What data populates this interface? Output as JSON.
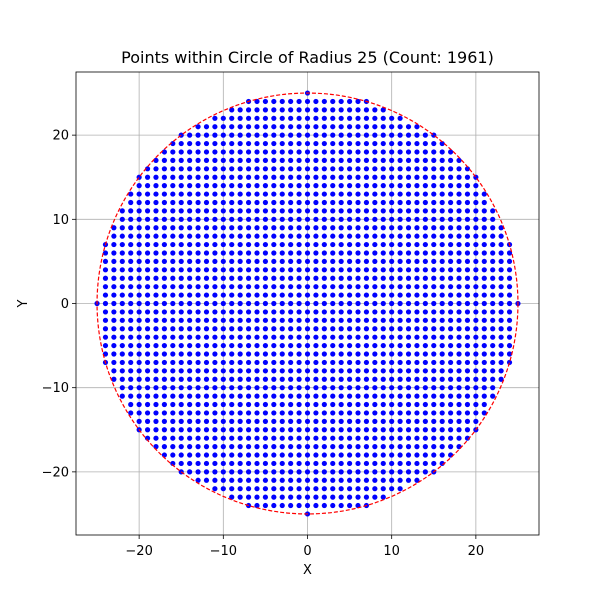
{
  "chart_data": {
    "type": "scatter",
    "title": "Points within Circle of Radius 25 (Count: 1961)",
    "xlabel": "X",
    "ylabel": "Y",
    "xlim": [
      -27.5,
      27.5
    ],
    "ylim": [
      -27.5,
      27.5
    ],
    "xticks": [
      -20,
      -10,
      0,
      10,
      20
    ],
    "yticks": [
      -20,
      -10,
      0,
      10,
      20
    ],
    "xtick_labels": [
      "−20",
      "−10",
      "0",
      "10",
      "20"
    ],
    "ytick_labels": [
      "−20",
      "−10",
      "0",
      "10",
      "20"
    ],
    "grid": true,
    "series": [
      {
        "kind": "integer-lattice-points",
        "rule": "x^2 + y^2 <= 625",
        "x_range": [
          -25,
          25
        ],
        "y_range": [
          -25,
          25
        ],
        "step": 1,
        "count": 1961,
        "color": "#0000ff"
      }
    ],
    "circle": {
      "center": [
        0,
        0
      ],
      "radius": 25,
      "color": "#ff0000",
      "style": "dashed"
    }
  }
}
